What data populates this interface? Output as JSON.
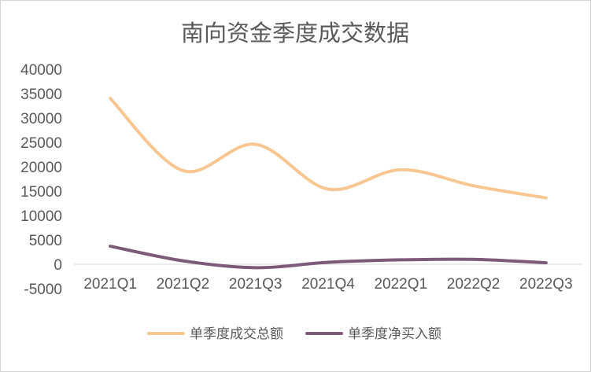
{
  "chart_data": {
    "type": "line",
    "title": "南向资金季度成交数据",
    "categories": [
      "2021Q1",
      "2021Q2",
      "2021Q3",
      "2021Q4",
      "2022Q1",
      "2022Q2",
      "2022Q3"
    ],
    "ylim": [
      -5000,
      40000
    ],
    "yticks": [
      "40000",
      "35000",
      "30000",
      "25000",
      "20000",
      "15000",
      "10000",
      "5000",
      "0",
      "-5000"
    ],
    "ytick_values": [
      40000,
      35000,
      30000,
      25000,
      20000,
      15000,
      10000,
      5000,
      0,
      -5000
    ],
    "grid": false,
    "smooth": true,
    "legend_position": "bottom",
    "series": [
      {
        "name": "单季度成交总额",
        "color": "#f8c791",
        "values": [
          34000,
          19200,
          24600,
          15400,
          19400,
          16100,
          13600
        ]
      },
      {
        "name": "单季度净买入额",
        "color": "#7e5a7a",
        "values": [
          3700,
          700,
          -700,
          400,
          900,
          1000,
          300
        ]
      }
    ]
  }
}
